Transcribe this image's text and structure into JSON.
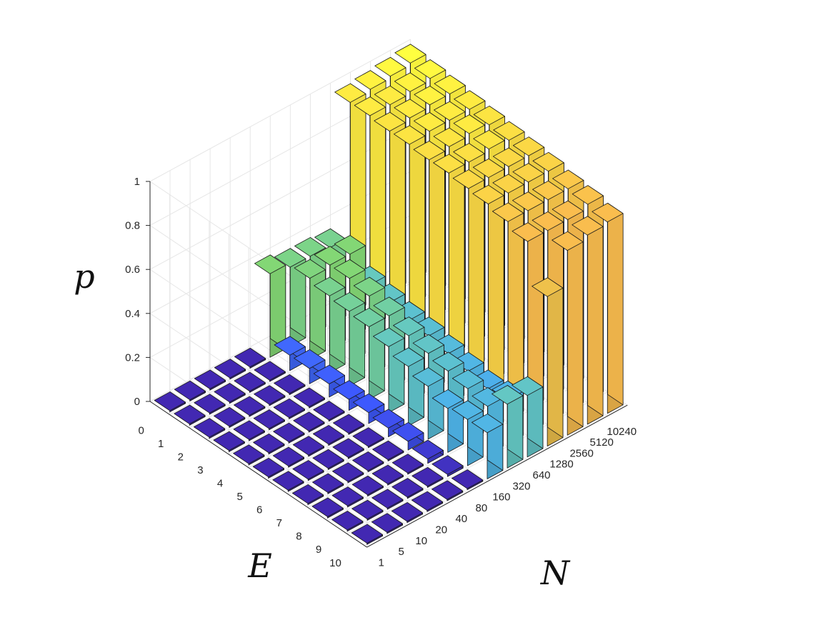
{
  "chart_data": {
    "type": "bar3d",
    "title": "",
    "xlabel": "N",
    "ylabel": "E",
    "zlabel": "p",
    "x_categories": [
      "1",
      "5",
      "10",
      "20",
      "40",
      "80",
      "160",
      "320",
      "640",
      "1280",
      "2560",
      "5120",
      "10240"
    ],
    "y_categories": [
      "0",
      "1",
      "2",
      "3",
      "4",
      "5",
      "6",
      "7",
      "8",
      "9",
      "10"
    ],
    "z_ticks": [
      "0",
      "0.2",
      "0.4",
      "0.6",
      "0.8",
      "1"
    ],
    "zlim": [
      0,
      1
    ],
    "grid": true,
    "colormap": "parula",
    "values_note": "rows indexed by E (0..10), columns indexed by N (1..10240)",
    "values": [
      [
        0.0,
        0.0,
        0.0,
        0.0,
        0.0,
        0.38,
        0.36,
        0.36,
        0.35,
        0.96,
        0.97,
        0.98,
        0.99
      ],
      [
        0.0,
        0.0,
        0.0,
        0.0,
        0.0,
        0.07,
        0.37,
        0.38,
        0.38,
        0.96,
        0.96,
        0.97,
        0.98
      ],
      [
        0.0,
        0.0,
        0.0,
        0.0,
        0.0,
        0.07,
        0.35,
        0.38,
        0.3,
        0.95,
        0.96,
        0.97,
        0.97
      ],
      [
        0.0,
        0.0,
        0.0,
        0.0,
        0.0,
        0.06,
        0.34,
        0.36,
        0.28,
        0.95,
        0.96,
        0.96,
        0.96
      ],
      [
        0.0,
        0.0,
        0.0,
        0.0,
        0.0,
        0.05,
        0.33,
        0.33,
        0.26,
        0.94,
        0.95,
        0.96,
        0.95
      ],
      [
        0.0,
        0.0,
        0.0,
        0.0,
        0.0,
        0.05,
        0.3,
        0.3,
        0.25,
        0.94,
        0.94,
        0.95,
        0.94
      ],
      [
        0.0,
        0.0,
        0.0,
        0.0,
        0.0,
        0.04,
        0.27,
        0.28,
        0.23,
        0.93,
        0.93,
        0.93,
        0.93
      ],
      [
        0.0,
        0.0,
        0.0,
        0.0,
        0.0,
        0.04,
        0.24,
        0.26,
        0.21,
        0.92,
        0.92,
        0.92,
        0.92
      ],
      [
        0.0,
        0.0,
        0.0,
        0.0,
        0.0,
        0.02,
        0.2,
        0.24,
        0.19,
        0.9,
        0.9,
        0.9,
        0.9
      ],
      [
        0.0,
        0.0,
        0.0,
        0.0,
        0.0,
        0.01,
        0.21,
        0.22,
        0.2,
        0.87,
        0.87,
        0.87,
        0.89
      ],
      [
        0.0,
        0.0,
        0.0,
        0.0,
        0.0,
        0.0,
        0.21,
        0.29,
        0.28,
        0.68,
        0.84,
        0.86,
        0.87
      ]
    ],
    "colors": {
      "low": "#3d2fa8",
      "mid_low": "#3a5cf0",
      "mid": "#49a7dc",
      "teal": "#5fbfb3",
      "green": "#7ccc6e",
      "olive": "#c9bf3b",
      "orange": "#eab34a",
      "yellow": "#f9f83c"
    }
  }
}
